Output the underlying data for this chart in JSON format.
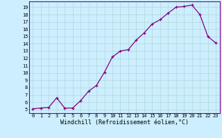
{
  "x": [
    0,
    1,
    2,
    3,
    4,
    5,
    6,
    7,
    8,
    9,
    10,
    11,
    12,
    13,
    14,
    15,
    16,
    17,
    18,
    19,
    20,
    21,
    22,
    23
  ],
  "y": [
    5.1,
    5.2,
    5.3,
    6.6,
    5.2,
    5.2,
    6.2,
    7.5,
    8.3,
    10.1,
    12.2,
    13.0,
    13.2,
    14.5,
    15.5,
    16.7,
    17.3,
    18.2,
    19.0,
    19.1,
    19.3,
    18.0,
    15.0,
    14.1
  ],
  "line_color": "#800080",
  "marker_color": "#800080",
  "bg_color": "#cceeff",
  "grid_color": "#b0d8d8",
  "xlabel": "Windchill (Refroidissement éolien,°C)",
  "xlim": [
    -0.5,
    23.5
  ],
  "ylim": [
    4.5,
    19.8
  ],
  "yticks": [
    5,
    6,
    7,
    8,
    9,
    10,
    11,
    12,
    13,
    14,
    15,
    16,
    17,
    18,
    19
  ],
  "xticks": [
    0,
    1,
    2,
    3,
    4,
    5,
    6,
    7,
    8,
    9,
    10,
    11,
    12,
    13,
    14,
    15,
    16,
    17,
    18,
    19,
    20,
    21,
    22,
    23
  ],
  "tick_fontsize": 5.0,
  "xlabel_fontsize": 6.0
}
